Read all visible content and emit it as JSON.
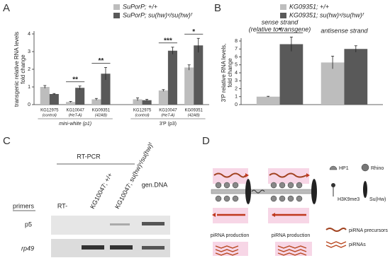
{
  "chart_data": [
    {
      "type": "bar",
      "ylabel": [
        "transgenic relative RNA levels",
        "fold change"
      ],
      "categories": [
        "KG12975",
        "KG10047",
        "KG09351",
        "KG12975",
        "KG10047",
        "KG09351"
      ],
      "sublabels": [
        "(control)",
        "(HeT-A)",
        "(42AB)",
        "(control)",
        "(HeT-A)",
        "(42AB)"
      ],
      "group_labels": [
        "mini-white (p1)",
        "3'P (p3)"
      ],
      "series": [
        {
          "name": "SuPorP; +/+",
          "color": "#bdbdbd",
          "values": [
            1.0,
            0.15,
            0.3,
            0.3,
            0.8,
            2.1
          ],
          "errors": [
            0.08,
            0.03,
            0.05,
            0.08,
            0.05,
            0.15
          ]
        },
        {
          "name": "SuPorP; su(hw)ᵛ/su(hw)ᶠ",
          "color": "#595959",
          "values": [
            0.6,
            0.95,
            1.75,
            0.25,
            3.05,
            3.35
          ],
          "errors": [
            0.03,
            0.1,
            0.35,
            0.05,
            0.2,
            0.4
          ]
        }
      ],
      "annotations": [
        {
          "category": 1,
          "text": "**"
        },
        {
          "category": 2,
          "text": "**"
        },
        {
          "category": 4,
          "text": "***"
        },
        {
          "category": 5,
          "text": "*"
        }
      ],
      "ylim": [
        0,
        4
      ],
      "yticks": [
        0,
        1,
        2,
        3,
        4
      ]
    },
    {
      "type": "bar",
      "ylabel": [
        "3'P relative RNA levels,",
        "fold change"
      ],
      "categories": [
        "sense strand",
        "antisense strand"
      ],
      "sublabels": [
        "(relative to transgene)",
        null
      ],
      "series": [
        {
          "name": "KG09351; +/+",
          "color": "#bdbdbd",
          "values": [
            1.0,
            5.3
          ],
          "errors": [
            0.05,
            0.8
          ]
        },
        {
          "name": "KG09351; su(hw)ᵛ/su(hw)ᶠ",
          "color": "#595959",
          "values": [
            7.6,
            7.0
          ],
          "errors": [
            0.9,
            0.4
          ]
        }
      ],
      "annotations": [
        {
          "category": 0,
          "text": "*"
        }
      ],
      "ylim": [
        0,
        8
      ],
      "yticks": [
        0,
        1,
        2,
        3,
        4,
        5,
        6,
        7,
        8
      ]
    }
  ],
  "panel_labels": [
    "A",
    "B",
    "C",
    "D"
  ],
  "gel": {
    "method": "RT-PCR",
    "rows_header": "primers",
    "lanes": [
      "RT-",
      "KG10047; +/+",
      "KG10047; su(hw)ᵛ/su(hw)ᶠ",
      "gen.DNA"
    ],
    "rows": [
      "p5",
      "rp49"
    ]
  },
  "diagram": {
    "production": [
      "piRNA production",
      "piRNA production"
    ],
    "legend": [
      "HP1",
      "Rhino",
      "H3K9me3",
      "Su(Hw)",
      "piRNA precursors",
      "piRNAs"
    ]
  }
}
